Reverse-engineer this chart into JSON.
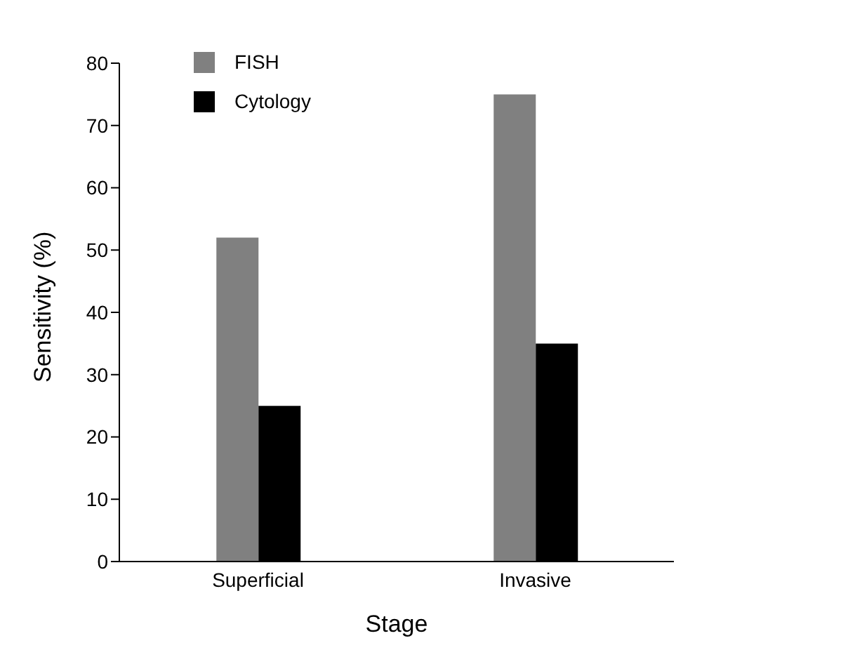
{
  "chart_data": {
    "type": "bar",
    "xlabel": "Stage",
    "ylabel": "Sensitivity (%)",
    "categories": [
      "Superficial",
      "Invasive"
    ],
    "series": [
      {
        "name": "FISH",
        "color": "#808080",
        "values": [
          52,
          75
        ]
      },
      {
        "name": "Cytology",
        "color": "#000000",
        "values": [
          25,
          35
        ]
      }
    ],
    "ylim": [
      0,
      80
    ],
    "yticks": [
      0,
      10,
      20,
      30,
      40,
      50,
      60,
      70,
      80
    ],
    "grid": false,
    "legend": "top left"
  }
}
